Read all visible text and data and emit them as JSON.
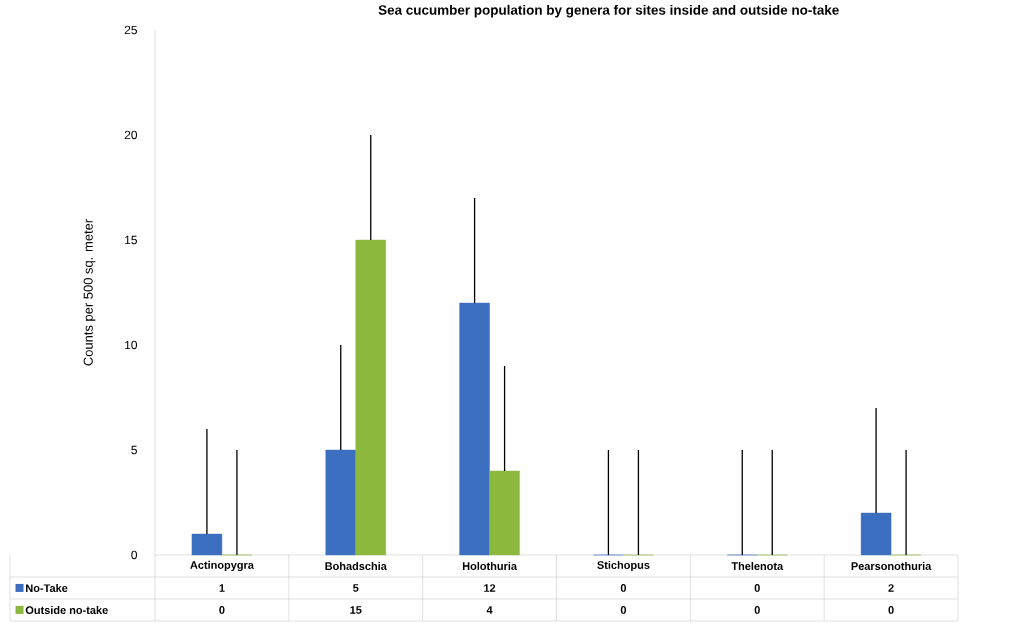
{
  "chart_data": {
    "type": "bar",
    "title": "Sea cucumber population by genera for sites inside and outside no-take",
    "ylabel": "Counts per 500 sq. meter",
    "categories": [
      "Actinopygra",
      "Bohadschia",
      "Holothuria",
      "Stichopus",
      "Thelenota",
      "Pearsonothuria"
    ],
    "series": [
      {
        "name": "No-Take",
        "color": "#3d6fc0",
        "values": [
          1,
          5,
          12,
          0,
          0,
          2
        ],
        "errors": [
          [
            1,
            6
          ],
          [
            5,
            10
          ],
          [
            12,
            17
          ],
          [
            0,
            5
          ],
          [
            0,
            5
          ],
          [
            2,
            7
          ]
        ]
      },
      {
        "name": "Outside no-take",
        "color": "#8db83e",
        "values": [
          0,
          15,
          4,
          0,
          0,
          0
        ],
        "errors": [
          [
            0,
            5
          ],
          [
            15,
            20
          ],
          [
            4,
            9
          ],
          [
            0,
            5
          ],
          [
            0,
            5
          ],
          [
            0,
            5
          ]
        ]
      }
    ],
    "ylim": [
      0,
      25
    ],
    "yticks": [
      0,
      5,
      10,
      15,
      20,
      25
    ],
    "grid": false,
    "legend": "bottom",
    "data_labels": true
  }
}
